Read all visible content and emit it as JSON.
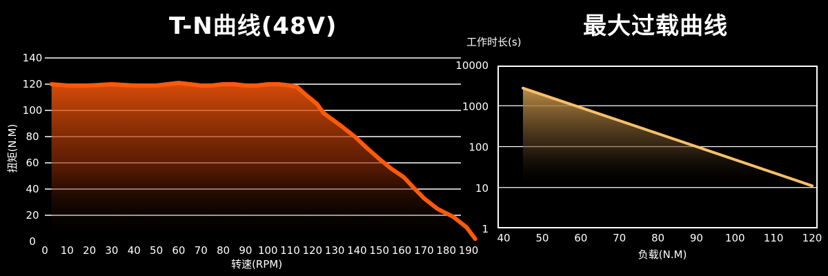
{
  "chart_data": [
    {
      "type": "area",
      "title": "T-N曲线(48V)",
      "xlabel": "转速(RPM)",
      "ylabel": "扭矩(N.M)",
      "xlim": [
        0,
        190
      ],
      "ylim": [
        0,
        140
      ],
      "x_ticks": [
        0,
        10,
        20,
        30,
        40,
        50,
        60,
        70,
        80,
        90,
        100,
        110,
        120,
        130,
        140,
        150,
        160,
        170,
        180,
        190
      ],
      "y_ticks": [
        0,
        20,
        40,
        60,
        80,
        100,
        120,
        140
      ],
      "grid": "horizontal",
      "series": [
        {
          "x": [
            3,
            10,
            20,
            30,
            40,
            50,
            55,
            60,
            65,
            70,
            75,
            80,
            85,
            90,
            95,
            100,
            105,
            110,
            113,
            117,
            122,
            125,
            133,
            139,
            144,
            150,
            155,
            161,
            166,
            170,
            176,
            183,
            189,
            193
          ],
          "y": [
            120,
            119,
            119,
            120,
            119,
            119,
            120,
            121,
            120,
            119,
            119,
            120,
            120,
            119,
            119,
            120,
            120,
            119,
            118,
            112,
            105,
            98,
            88,
            80,
            72,
            63,
            56,
            49,
            40,
            33,
            25,
            19,
            11,
            2
          ]
        }
      ],
      "colors": {
        "line": "#ff5a0a",
        "fill_top": "#ff5a0a"
      }
    },
    {
      "type": "area",
      "title": "最大过载曲线",
      "xlabel": "负载(N.M)",
      "ylabel": "工作时长(s)",
      "xlim": [
        40,
        120
      ],
      "ylim": [
        1,
        10000
      ],
      "yscale": "log",
      "x_ticks": [
        40,
        50,
        60,
        70,
        80,
        90,
        100,
        110,
        120
      ],
      "y_ticks": [
        1,
        10,
        100,
        1000,
        10000
      ],
      "y_tick_labels": [
        "1",
        "10",
        "100",
        "1000",
        "10000"
      ],
      "grid": "horizontal",
      "series": [
        {
          "x": [
            45,
            90,
            120
          ],
          "y": [
            2700,
            100,
            11
          ]
        }
      ],
      "colors": {
        "line": "#f7c06a",
        "fill_top": "#c8954a"
      }
    }
  ]
}
